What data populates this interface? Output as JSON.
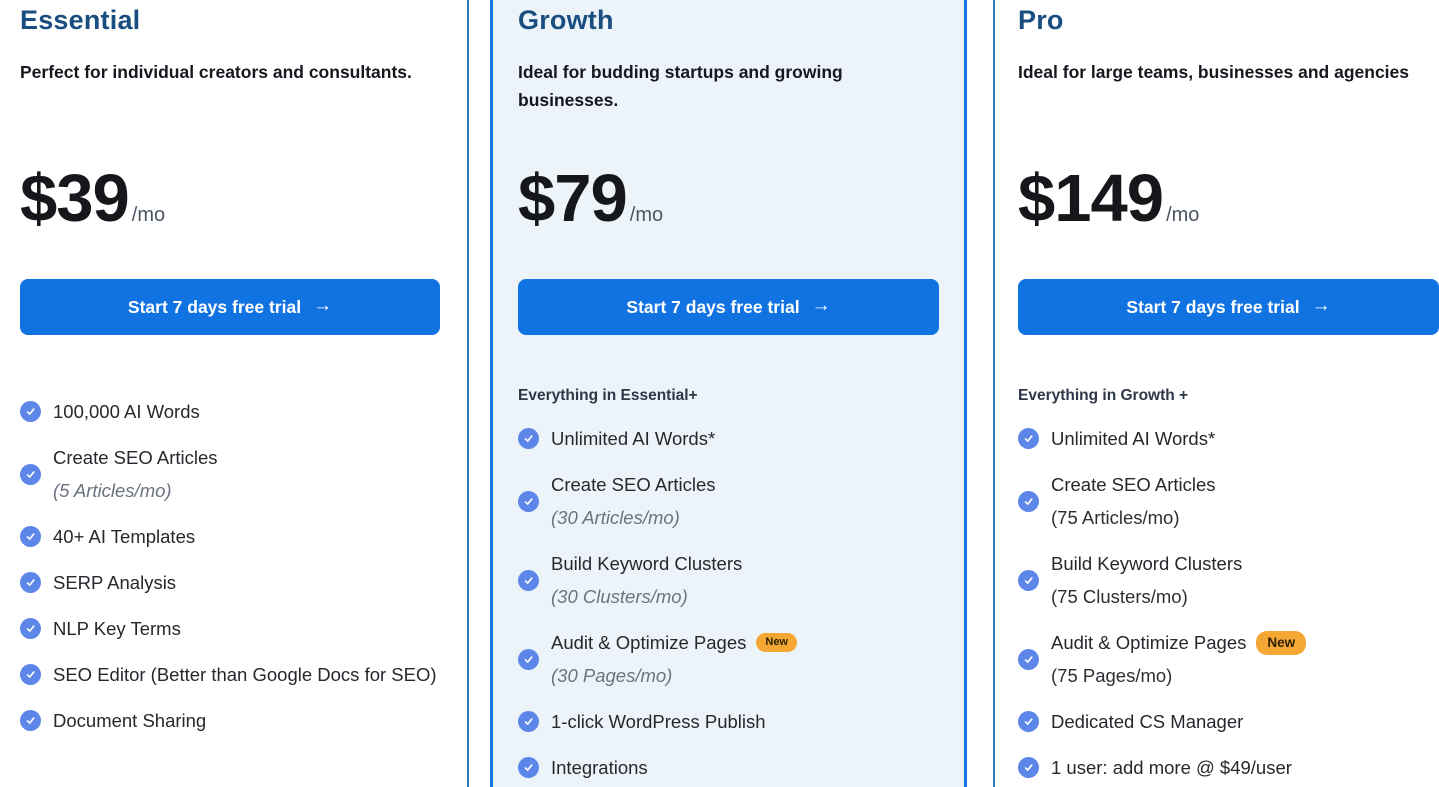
{
  "colors": {
    "heading": "#1b4e80",
    "button_background": "#1173e2",
    "button_text": "#ffffff",
    "highlight_card_background": "#ecf4fa",
    "highlight_card_border": "#1478e0",
    "column_divider": "#2f78bb",
    "check_icon": "#5c87e9",
    "badge_background": "#f4a733",
    "badge_text": "#2b2200",
    "detail_muted": "#6b7280"
  },
  "cta": {
    "label": "Start 7 days free trial",
    "arrow": "→"
  },
  "plans": [
    {
      "name": "Essential",
      "description": "Perfect for individual creators and consultants.",
      "price": "$39",
      "period": "/mo",
      "features_header": "",
      "features": [
        {
          "title": "100,000 AI Words"
        },
        {
          "title": "Create SEO Articles",
          "detail": "(5 Articles/mo)",
          "detail_italic": true
        },
        {
          "title": "40+ AI Templates"
        },
        {
          "title": "SERP Analysis"
        },
        {
          "title": "NLP Key Terms"
        },
        {
          "title": "SEO Editor (Better than Google Docs for SEO)"
        },
        {
          "title": "Document Sharing"
        }
      ]
    },
    {
      "name": "Growth",
      "description": "Ideal for budding startups and growing businesses.",
      "price": "$79",
      "period": "/mo",
      "features_header": "Everything in Essential+",
      "features": [
        {
          "title": "Unlimited AI Words*"
        },
        {
          "title": "Create SEO Articles",
          "detail": "(30 Articles/mo)",
          "detail_italic": true
        },
        {
          "title": "Build Keyword Clusters",
          "detail": "(30 Clusters/mo)",
          "detail_italic": true
        },
        {
          "title": "Audit & Optimize Pages",
          "badge": "New",
          "detail": "(30 Pages/mo)",
          "detail_italic": true
        },
        {
          "title": "1-click WordPress Publish"
        },
        {
          "title": "Integrations"
        }
      ]
    },
    {
      "name": "Pro",
      "description": "Ideal for large teams, businesses and agencies",
      "price": "$149",
      "period": "/mo",
      "features_header": "Everything in Growth +",
      "features": [
        {
          "title": "Unlimited AI Words*"
        },
        {
          "title": "Create SEO Articles",
          "detail": "(75 Articles/mo)",
          "detail_italic": false
        },
        {
          "title": "Build Keyword Clusters",
          "detail": "(75 Clusters/mo)",
          "detail_italic": false
        },
        {
          "title": "Audit & Optimize Pages",
          "badge": "New",
          "detail": "(75 Pages/mo)",
          "detail_italic": false
        },
        {
          "title": "Dedicated CS Manager"
        },
        {
          "title": "1 user: add more @ $49/user"
        }
      ]
    }
  ]
}
